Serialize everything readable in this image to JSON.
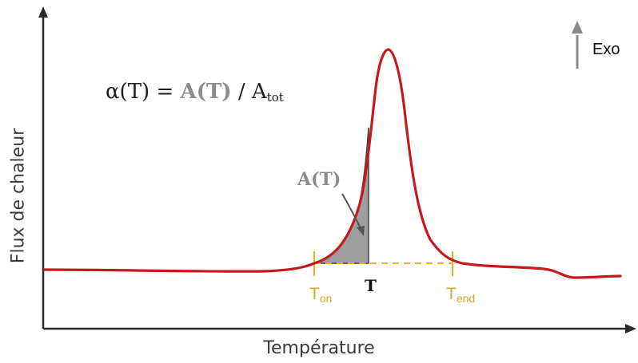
{
  "diagram": {
    "x_axis_label": "Température",
    "y_axis_label": "Flux de chaleur",
    "formula": {
      "lhs": "α(T) = ",
      "area": "A(T)",
      "separator": " / A",
      "total_sub": "tot"
    },
    "area_label": "A(T)",
    "t_label": "T",
    "t_on": {
      "main": "T",
      "sub": "on"
    },
    "t_end": {
      "main": "T",
      "sub": "end"
    },
    "exo_label": "Exo",
    "colors": {
      "curve": "#c41a1a",
      "marker": "#e8b01c",
      "area_fill": "#9e9e9e",
      "axis": "#2a2a2a",
      "exo_arrow": "#8a8a8a"
    }
  }
}
